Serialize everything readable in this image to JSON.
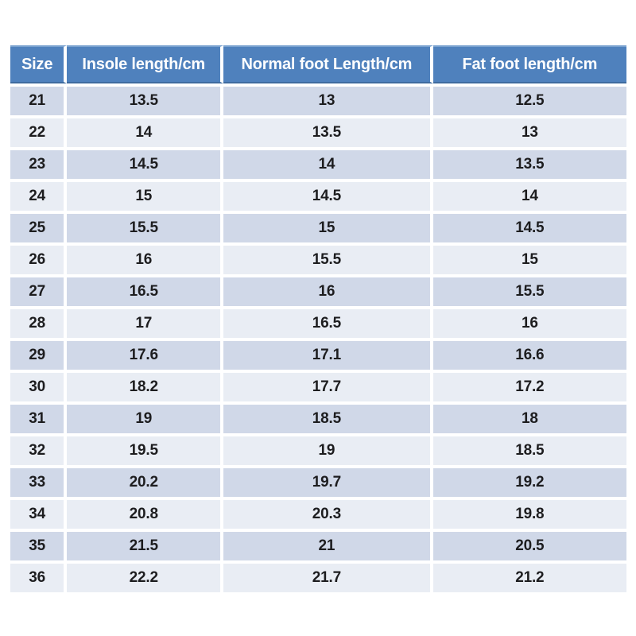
{
  "chart_data": {
    "type": "table",
    "title": "",
    "columns": [
      "Size",
      "Insole length/cm",
      "Normal foot Length/cm",
      "Fat foot length/cm"
    ],
    "rows": [
      [
        "21",
        "13.5",
        "13",
        "12.5"
      ],
      [
        "22",
        "14",
        "13.5",
        "13"
      ],
      [
        "23",
        "14.5",
        "14",
        "13.5"
      ],
      [
        "24",
        "15",
        "14.5",
        "14"
      ],
      [
        "25",
        "15.5",
        "15",
        "14.5"
      ],
      [
        "26",
        "16",
        "15.5",
        "15"
      ],
      [
        "27",
        "16.5",
        "16",
        "15.5"
      ],
      [
        "28",
        "17",
        "16.5",
        "16"
      ],
      [
        "29",
        "17.6",
        "17.1",
        "16.6"
      ],
      [
        "30",
        "18.2",
        "17.7",
        "17.2"
      ],
      [
        "31",
        "19",
        "18.5",
        "18"
      ],
      [
        "32",
        "19.5",
        "19",
        "18.5"
      ],
      [
        "33",
        "20.2",
        "19.7",
        "19.2"
      ],
      [
        "34",
        "20.8",
        "20.3",
        "19.8"
      ],
      [
        "35",
        "21.5",
        "21",
        "20.5"
      ],
      [
        "36",
        "22.2",
        "21.7",
        "21.2"
      ]
    ]
  },
  "colors": {
    "header_bg": "#4f81bd",
    "header_text": "#ffffff",
    "header_edge_light": "#7ba3d0",
    "header_edge_dark": "#3e6b9f",
    "row_band_dark": "#d0d8e8",
    "row_band_light": "#e9edf4",
    "separator": "#ffffff",
    "cell_text": "#1d1d1f",
    "page_background": "#ffffff"
  }
}
